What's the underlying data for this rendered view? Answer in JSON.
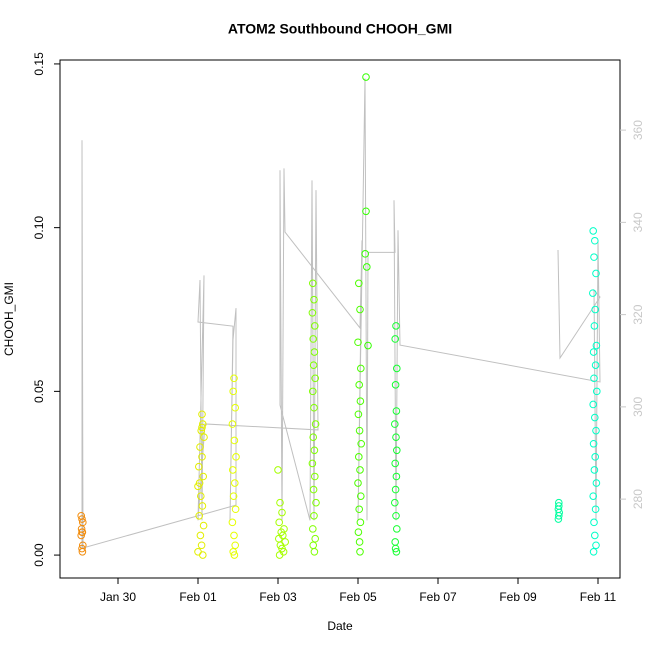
{
  "chart_data": {
    "type": "scatter",
    "title": "ATOM2 Southbound CHOOH_GMI",
    "x_label": "Date",
    "y_label": "CHOOH_GMI",
    "xlim": [
      28.55,
      42.55
    ],
    "xticks": [
      {
        "value": 30,
        "label": "Jan 30"
      },
      {
        "value": 32,
        "label": "Feb 01"
      },
      {
        "value": 34,
        "label": "Feb 03"
      },
      {
        "value": 36,
        "label": "Feb 05"
      },
      {
        "value": 38,
        "label": "Feb 07"
      },
      {
        "value": 40,
        "label": "Feb 09"
      },
      {
        "value": 42,
        "label": "Feb 11"
      }
    ],
    "ylim": [
      -0.007,
      0.1512
    ],
    "yticks": [
      {
        "value": 0,
        "label": "0.00"
      },
      {
        "value": 0.05,
        "label": "0.05"
      },
      {
        "value": 0.1,
        "label": "0.10"
      },
      {
        "value": 0.15,
        "label": "0.15"
      }
    ],
    "y2lim": [
      262.9,
      375.2
    ],
    "y2ticks": [
      280,
      300,
      320,
      340,
      360
    ],
    "series": [
      {
        "kind": "line",
        "axis": "y2",
        "color": "#c0c0c0",
        "x": [
          29.1,
          29.1,
          29.125,
          32.95,
          32.95,
          32.875,
          32.8,
          32.875,
          32.0,
          32.05,
          32.1,
          32.15,
          32.0,
          32.175,
          35.0,
          34.95,
          34.9,
          34.85,
          34.8,
          34.05,
          34.05,
          34.1,
          34.15,
          34.175,
          36.05,
          36.1,
          36.0,
          36.175,
          36.225,
          36.25,
          36.925,
          36.9,
          36.95,
          37.0,
          37.05,
          42.05,
          42.0,
          41.95,
          41.9,
          42.05,
          41.05,
          41.0
        ],
        "values": [
          269.4,
          357.8,
          269.4,
          278.7,
          321.4,
          314.5,
          275.4,
          317.5,
          318.4,
          327.5,
          275.4,
          328.5,
          275.4,
          296.3,
          295.0,
          347.0,
          275.4,
          349.1,
          275.4,
          300.4,
          351.3,
          275.4,
          351.7,
          337.9,
          317.1,
          336.1,
          275.4,
          371.2,
          275.4,
          333.5,
          333.5,
          344.8,
          275.4,
          338.3,
          313.4,
          305.4,
          336.1,
          275.4,
          325.3,
          323.8,
          310.6,
          334.0
        ]
      },
      {
        "kind": "points",
        "color": "#f28c0c",
        "x": [
          29.08,
          29.1,
          29.12,
          29.09,
          29.11,
          29.1,
          29.08,
          29.12,
          29.1,
          29.11
        ],
        "values": [
          0.012,
          0.011,
          0.01,
          0.008,
          0.007,
          0.007,
          0.006,
          0.003,
          0.002,
          0.001
        ]
      },
      {
        "kind": "points",
        "color": "#e2ee00",
        "x": [
          32.1,
          32.12,
          32.08,
          32.15,
          32.05,
          32.1,
          32.02,
          32.13,
          32.0,
          32.07,
          32.11,
          32.03,
          32.14,
          32.06,
          32.09,
          32.0,
          32.12,
          32.1,
          32.04
        ],
        "values": [
          0.043,
          0.04,
          0.038,
          0.036,
          0.033,
          0.03,
          0.027,
          0.024,
          0.021,
          0.018,
          0.015,
          0.012,
          0.009,
          0.006,
          0.003,
          0.001,
          0.0,
          0.039,
          0.022
        ]
      },
      {
        "kind": "points",
        "color": "#e6ff00",
        "x": [
          32.9,
          32.88,
          32.93,
          32.86,
          32.91,
          32.95,
          32.87,
          32.92,
          32.89,
          32.94,
          32.86,
          32.9,
          32.93,
          32.88,
          32.91
        ],
        "values": [
          0.054,
          0.05,
          0.045,
          0.04,
          0.035,
          0.03,
          0.026,
          0.022,
          0.018,
          0.014,
          0.01,
          0.006,
          0.003,
          0.001,
          0.0
        ]
      },
      {
        "kind": "points",
        "color": "#a6ff00",
        "x": [
          34.0,
          34.05,
          34.1,
          34.03,
          34.15,
          34.08,
          34.12,
          34.02,
          34.18,
          34.06,
          34.1,
          34.14,
          34.04
        ],
        "values": [
          0.026,
          0.016,
          0.013,
          0.01,
          0.008,
          0.007,
          0.006,
          0.005,
          0.004,
          0.003,
          0.002,
          0.001,
          0.0
        ]
      },
      {
        "kind": "points",
        "color": "#80ff00",
        "x": [
          34.87,
          34.9,
          34.86,
          34.92,
          34.88,
          34.91,
          34.89,
          34.93,
          34.87,
          34.9,
          34.94,
          34.88,
          34.91,
          34.86,
          34.92,
          34.89,
          34.95,
          34.9,
          34.87,
          34.93,
          34.88,
          34.91
        ],
        "values": [
          0.083,
          0.078,
          0.074,
          0.07,
          0.066,
          0.062,
          0.058,
          0.054,
          0.05,
          0.045,
          0.04,
          0.036,
          0.032,
          0.028,
          0.024,
          0.02,
          0.016,
          0.012,
          0.008,
          0.005,
          0.003,
          0.001
        ]
      },
      {
        "kind": "points",
        "color": "#4dff00",
        "x": [
          36.02,
          36.05,
          36.0,
          36.07,
          36.03,
          36.06,
          36.01,
          36.04,
          36.08,
          36.02,
          36.05,
          36.0,
          36.07,
          36.03,
          36.06,
          36.01,
          36.04,
          36.05
        ],
        "values": [
          0.083,
          0.075,
          0.065,
          0.057,
          0.052,
          0.047,
          0.043,
          0.038,
          0.034,
          0.03,
          0.026,
          0.022,
          0.018,
          0.014,
          0.01,
          0.007,
          0.004,
          0.001
        ]
      },
      {
        "kind": "points",
        "color": "#33ff00",
        "x": [
          36.2,
          36.2,
          36.18,
          36.22,
          36.25
        ],
        "values": [
          0.146,
          0.105,
          0.092,
          0.088,
          0.064
        ]
      },
      {
        "kind": "points",
        "color": "#14ff30",
        "x": [
          36.95,
          36.93,
          36.97,
          36.94,
          36.96,
          36.92,
          36.95,
          36.97,
          36.93,
          36.96,
          36.94,
          36.92,
          36.95,
          36.97,
          36.93,
          36.94,
          36.96
        ],
        "values": [
          0.07,
          0.066,
          0.057,
          0.052,
          0.044,
          0.04,
          0.036,
          0.032,
          0.028,
          0.024,
          0.02,
          0.016,
          0.012,
          0.008,
          0.004,
          0.002,
          0.001
        ]
      },
      {
        "kind": "points",
        "color": "#00ffa0",
        "x": [
          41.02,
          41.02,
          41.01,
          41.03,
          41.02,
          41.01
        ],
        "values": [
          0.016,
          0.015,
          0.014,
          0.013,
          0.012,
          0.011
        ]
      },
      {
        "kind": "points",
        "color": "#00ffc8",
        "x": [
          41.88,
          41.92,
          41.9,
          41.95,
          41.87,
          41.93,
          41.91,
          41.96,
          41.89,
          41.94,
          41.9,
          41.97,
          41.88,
          41.92,
          41.95,
          41.89,
          41.93,
          41.91,
          41.96,
          41.88,
          41.94,
          41.9,
          41.92,
          41.95,
          41.89
        ],
        "values": [
          0.099,
          0.096,
          0.091,
          0.086,
          0.08,
          0.075,
          0.07,
          0.064,
          0.062,
          0.058,
          0.054,
          0.05,
          0.046,
          0.042,
          0.038,
          0.034,
          0.03,
          0.026,
          0.022,
          0.018,
          0.014,
          0.01,
          0.006,
          0.003,
          0.001
        ]
      }
    ]
  }
}
